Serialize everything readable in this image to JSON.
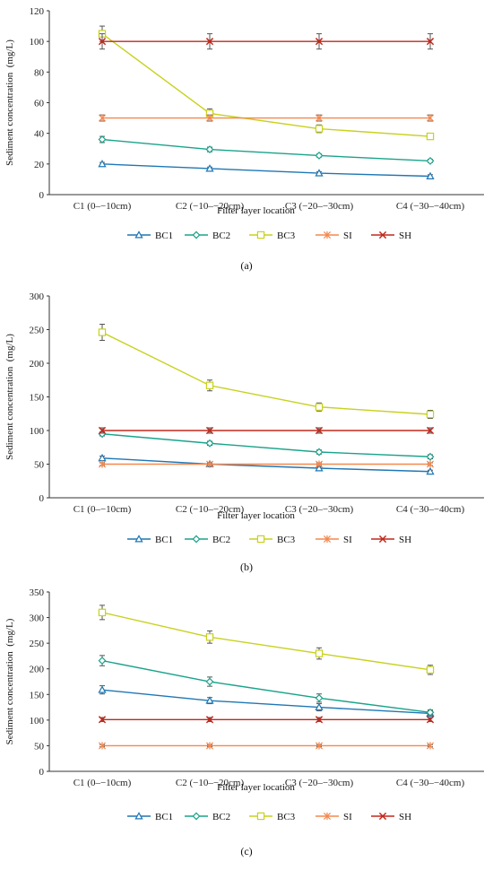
{
  "colors": {
    "BC1": "#1f77b4",
    "BC2": "#1aa38a",
    "BC3": "#c8d11e",
    "SI": "#f4884f",
    "SH": "#c0281b",
    "axis": "#333333",
    "errbar": "#555555"
  },
  "chart_data": [
    {
      "type": "line",
      "caption": "(a)",
      "xlabel": "Filter layer location",
      "ylabel": "Sediment concentration  (mg/L)",
      "categories": [
        "C1 (0–−10cm)",
        "C2 (−10–−20cm)",
        "C3 (−20–−30cm)",
        "C4 (−30–−40cm)"
      ],
      "ylim": [
        0,
        120
      ],
      "yticks": [
        "0",
        "20",
        "40",
        "60",
        "80",
        "100",
        "120"
      ],
      "series": [
        {
          "name": "BC1",
          "marker": "triangle",
          "values": [
            20,
            17,
            14,
            12
          ],
          "errors": [
            1,
            1,
            1,
            1
          ]
        },
        {
          "name": "BC2",
          "marker": "diamond",
          "values": [
            36,
            29.5,
            25.5,
            22
          ],
          "errors": [
            2,
            1.5,
            1,
            1
          ]
        },
        {
          "name": "BC3",
          "marker": "square",
          "values": [
            105,
            53,
            43,
            38
          ],
          "errors": [
            5,
            3,
            2.5,
            2
          ]
        },
        {
          "name": "SI",
          "marker": "asterisk",
          "values": [
            50,
            50,
            50,
            50
          ],
          "errors": [
            2,
            2,
            2,
            2
          ]
        },
        {
          "name": "SH",
          "marker": "x",
          "values": [
            100,
            100,
            100,
            100
          ],
          "errors": [
            5,
            5,
            5,
            5
          ]
        }
      ]
    },
    {
      "type": "line",
      "caption": "(b)",
      "xlabel": "Filter layer location",
      "ylabel": "Sediment concentration  (mg/L)",
      "categories": [
        "C1 (0–−10cm)",
        "C2 (−10–−20cm)",
        "C3 (−20–−30cm)",
        "C4 (−30–−40cm)"
      ],
      "ylim": [
        0,
        300
      ],
      "yticks": [
        "0",
        "50",
        "100",
        "150",
        "200",
        "250",
        "300"
      ],
      "series": [
        {
          "name": "BC1",
          "marker": "triangle",
          "values": [
            59,
            50,
            44,
            39
          ],
          "errors": [
            3,
            2,
            2,
            2
          ]
        },
        {
          "name": "BC2",
          "marker": "diamond",
          "values": [
            95,
            81,
            68,
            61
          ],
          "errors": [
            3,
            3,
            3,
            3
          ]
        },
        {
          "name": "BC3",
          "marker": "square",
          "values": [
            246,
            167,
            135,
            124
          ],
          "errors": [
            12,
            8,
            6,
            6
          ]
        },
        {
          "name": "SI",
          "marker": "asterisk",
          "values": [
            50,
            50,
            50,
            50
          ],
          "errors": [
            2,
            2,
            2,
            2
          ]
        },
        {
          "name": "SH",
          "marker": "x",
          "values": [
            100,
            100,
            100,
            100
          ],
          "errors": [
            4,
            4,
            4,
            4
          ]
        }
      ]
    },
    {
      "type": "line",
      "caption": "(c)",
      "xlabel": "Filter layer location",
      "ylabel": "Sediment concentration  (mg/L)",
      "categories": [
        "C1 (0–−10cm)",
        "C2 (−10–−20cm)",
        "C3 (−20–−30cm)",
        "C4 (−30–−40cm)"
      ],
      "ylim": [
        0,
        350
      ],
      "yticks": [
        "0",
        "50",
        "100",
        "150",
        "200",
        "250",
        "300",
        "350"
      ],
      "series": [
        {
          "name": "BC1",
          "marker": "triangle",
          "values": [
            159,
            138,
            125,
            113
          ],
          "errors": [
            8,
            6,
            7,
            5
          ]
        },
        {
          "name": "BC2",
          "marker": "diamond",
          "values": [
            216,
            175,
            143,
            115
          ],
          "errors": [
            10,
            9,
            8,
            5
          ]
        },
        {
          "name": "BC3",
          "marker": "square",
          "values": [
            310,
            262,
            230,
            198
          ],
          "errors": [
            14,
            12,
            11,
            9
          ]
        },
        {
          "name": "SI",
          "marker": "asterisk",
          "values": [
            50,
            50,
            50,
            50
          ],
          "errors": [
            2,
            2,
            2,
            2
          ]
        },
        {
          "name": "SH",
          "marker": "x",
          "values": [
            101,
            101,
            101,
            101
          ],
          "errors": [
            4,
            4,
            4,
            4
          ]
        }
      ]
    }
  ]
}
